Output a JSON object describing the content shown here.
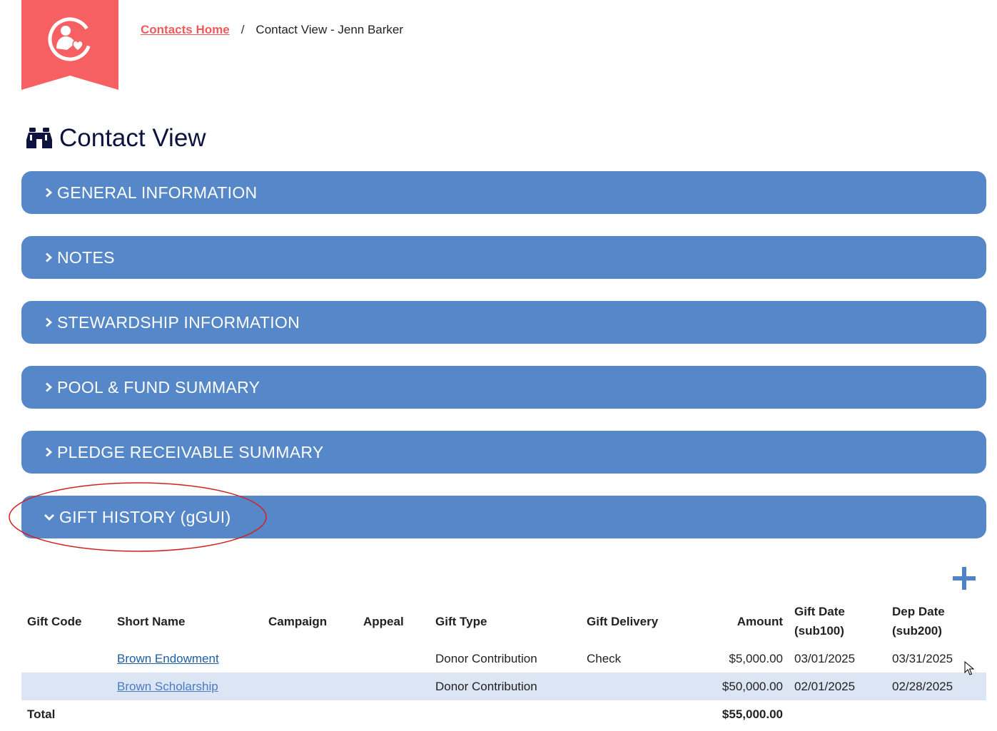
{
  "breadcrumb": {
    "home_label": "Contacts Home",
    "separator": "/",
    "current": "Contact View - Jenn Barker"
  },
  "page": {
    "title": "Contact View",
    "icon": "binoculars-icon"
  },
  "sections": [
    {
      "label": "GENERAL INFORMATION",
      "expanded": false
    },
    {
      "label": "NOTES",
      "expanded": false
    },
    {
      "label": "STEWARDSHIP INFORMATION",
      "expanded": false
    },
    {
      "label": "POOL & FUND SUMMARY",
      "expanded": false
    },
    {
      "label": "PLEDGE RECEIVABLE SUMMARY",
      "expanded": false
    },
    {
      "label": "GIFT HISTORY (gGUI)",
      "expanded": true
    }
  ],
  "gift_table": {
    "headers": {
      "gift_code": "Gift Code",
      "short_name": "Short Name",
      "campaign": "Campaign",
      "appeal": "Appeal",
      "gift_type": "Gift Type",
      "gift_delivery": "Gift Delivery",
      "amount": "Amount",
      "gift_date_line1": "Gift Date",
      "gift_date_line2": "(sub100)",
      "dep_date_line1": "Dep Date",
      "dep_date_line2": "(sub200)"
    },
    "rows": [
      {
        "gift_code": "",
        "short_name": "Brown Endowment",
        "campaign": "",
        "appeal": "",
        "gift_type": "Donor Contribution",
        "gift_delivery": "Check",
        "amount": "$5,000.00",
        "gift_date": "03/01/2025",
        "dep_date": "03/31/2025"
      },
      {
        "gift_code": "",
        "short_name": "Brown Scholarship",
        "campaign": "",
        "appeal": "",
        "gift_type": "Donor Contribution",
        "gift_delivery": "",
        "amount": "$50,000.00",
        "gift_date": "02/01/2025",
        "dep_date": "02/28/2025"
      }
    ],
    "total": {
      "label": "Total",
      "amount": "$55,000.00"
    }
  },
  "colors": {
    "brand": "#f76063",
    "section_bg": "#5587c9",
    "title": "#0c1340",
    "alt_row": "#dbe5f3",
    "annotation": "#d42020"
  }
}
